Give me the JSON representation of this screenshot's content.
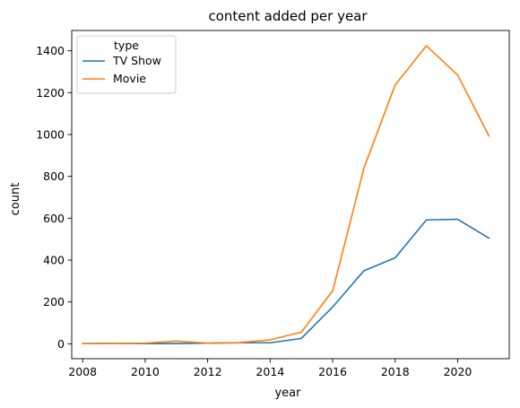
{
  "chart_data": {
    "type": "line",
    "title": "content added per year",
    "xlabel": "year",
    "ylabel": "count",
    "xlim": [
      2007.65,
      2021.65
    ],
    "ylim": [
      -71,
      1497
    ],
    "xticks": [
      2008,
      2010,
      2012,
      2014,
      2016,
      2018,
      2020
    ],
    "yticks": [
      0,
      200,
      400,
      600,
      800,
      1000,
      1200,
      1400
    ],
    "grid": false,
    "legend": {
      "title": "type",
      "placement": "top-left"
    },
    "x": [
      2008,
      2009,
      2010,
      2011,
      2012,
      2013,
      2014,
      2015,
      2016,
      2017,
      2018,
      2019,
      2020,
      2021
    ],
    "series": [
      {
        "name": "TV Show",
        "color": "#1f77b4",
        "values": [
          1,
          2,
          1,
          1,
          3,
          5,
          5,
          26,
          176,
          349,
          411,
          592,
          595,
          505
        ]
      },
      {
        "name": "Movie",
        "color": "#ff7f0e",
        "values": [
          1,
          2,
          3,
          13,
          3,
          6,
          19,
          56,
          253,
          839,
          1237,
          1424,
          1284,
          993
        ]
      }
    ]
  }
}
